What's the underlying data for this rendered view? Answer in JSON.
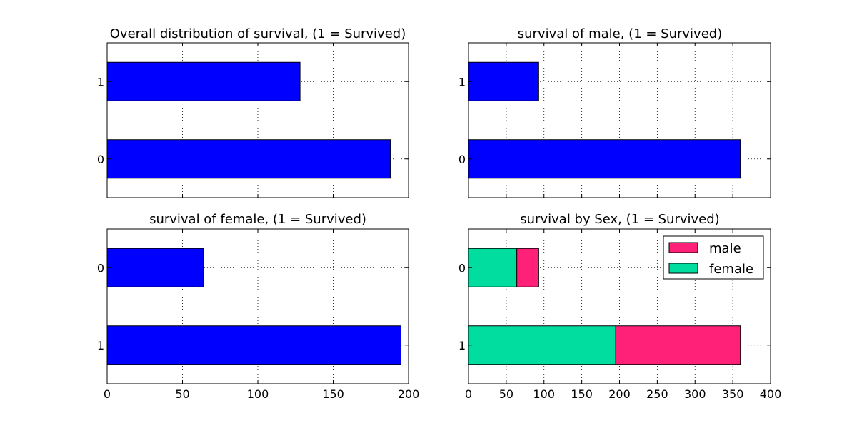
{
  "chart_data": [
    {
      "type": "bar",
      "orientation": "horizontal",
      "title": "Overall distribution of survival, (1 = Survived)",
      "categories": [
        "1",
        "0"
      ],
      "values": [
        128,
        188
      ],
      "xlim": [
        0,
        200
      ],
      "xticks": [
        "0",
        "50",
        "100",
        "150",
        "200"
      ],
      "x_ticklabels_shown": false,
      "grid": true,
      "color": "#0000ff"
    },
    {
      "type": "bar",
      "orientation": "horizontal",
      "title": "survival of male, (1 = Survived)",
      "categories": [
        "1",
        "0"
      ],
      "values": [
        93,
        360
      ],
      "xlim": [
        0,
        400
      ],
      "xticks": [
        "0",
        "50",
        "100",
        "150",
        "200",
        "250",
        "300",
        "350",
        "400"
      ],
      "x_ticklabels_shown": false,
      "grid": true,
      "color": "#0000ff"
    },
    {
      "type": "bar",
      "orientation": "horizontal",
      "title": "survival of female, (1 = Survived)",
      "categories": [
        "0",
        "1"
      ],
      "values": [
        64,
        195
      ],
      "xlim": [
        0,
        200
      ],
      "xticks": [
        "0",
        "50",
        "100",
        "150",
        "200"
      ],
      "x_ticklabels_shown": true,
      "grid": true,
      "color": "#0000ff"
    },
    {
      "type": "bar",
      "orientation": "horizontal",
      "stacked": true,
      "title": "survival by Sex, (1 = Survived)",
      "categories": [
        "0",
        "1"
      ],
      "series": [
        {
          "name": "female",
          "values": [
            64,
            195
          ],
          "color": "#00dd9f"
        },
        {
          "name": "male",
          "values": [
            29,
            165
          ],
          "color": "#ff2078"
        }
      ],
      "xlim": [
        0,
        400
      ],
      "xticks": [
        "0",
        "50",
        "100",
        "150",
        "200",
        "250",
        "300",
        "350",
        "400"
      ],
      "x_ticklabels_shown": true,
      "grid": true,
      "legend": {
        "placement": "top-right",
        "order": [
          "male",
          "female"
        ]
      }
    }
  ]
}
